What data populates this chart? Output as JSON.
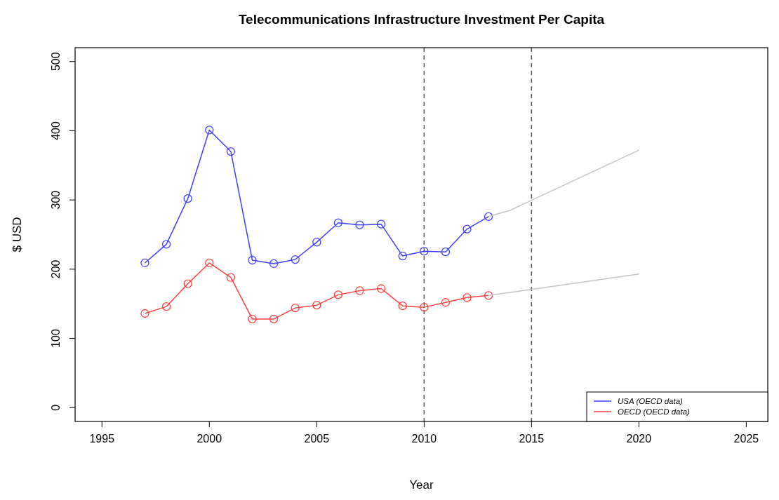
{
  "chart_data": {
    "type": "line",
    "title": "Telecommunications Infrastructure Investment Per Capita",
    "xlabel": "Year",
    "ylabel": "$ USD",
    "xlim": [
      1993.75,
      2026
    ],
    "xticks": [
      1995,
      2000,
      2005,
      2010,
      2015,
      2020,
      2025
    ],
    "ylim": [
      -20,
      520
    ],
    "yticks": [
      0,
      100,
      200,
      300,
      400,
      500
    ],
    "grid": false,
    "legend": "bottom right",
    "line_style": "solid",
    "series": [
      {
        "name": "USA (OECD data)",
        "color": "#3f3fff",
        "marker": "circle",
        "x": [
          1997,
          1998,
          1999,
          2000,
          2001,
          2002,
          2003,
          2004,
          2005,
          2006,
          2007,
          2008,
          2009,
          2010,
          2011,
          2012,
          2013
        ],
        "values": [
          209,
          236,
          302,
          401,
          370,
          213,
          208,
          214,
          239,
          267,
          264,
          265,
          219,
          226,
          225,
          258,
          276
        ]
      },
      {
        "name": "OECD (OECD data)",
        "color": "#ff3f3f",
        "marker": "circle",
        "x": [
          1997,
          1998,
          1999,
          2000,
          2001,
          2002,
          2003,
          2004,
          2005,
          2006,
          2007,
          2008,
          2009,
          2010,
          2011,
          2012,
          2013
        ],
        "values": [
          136,
          146,
          179,
          209,
          188,
          128,
          128,
          144,
          148,
          163,
          169,
          172,
          147,
          145,
          152,
          159,
          162
        ]
      },
      {
        "color": "#c4c4c4",
        "marker": "none",
        "x": [
          2013,
          2014,
          2020
        ],
        "values": [
          276,
          285,
          372
        ]
      },
      {
        "color": "#c4c4c4",
        "marker": "none",
        "x": [
          2013,
          2020
        ],
        "values": [
          162,
          193
        ]
      }
    ],
    "ref_lines": [
      {
        "axis": "x",
        "value": 2010,
        "color": "#555555",
        "line_style": "dashed"
      },
      {
        "axis": "x",
        "value": 2015,
        "color": "#555555",
        "line_style": "dashed"
      }
    ]
  }
}
